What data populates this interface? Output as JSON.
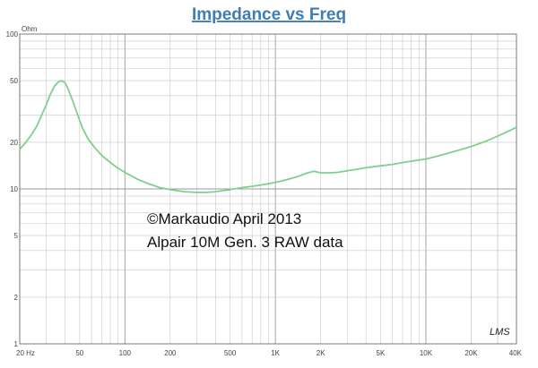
{
  "chart_data": {
    "type": "line",
    "title": "Impedance vs Freq",
    "ylabel": "Ohm",
    "xlabel": "",
    "x_scale": "log",
    "y_scale": "log",
    "xlim": [
      20,
      40000
    ],
    "ylim": [
      1,
      100
    ],
    "grid": true,
    "x_ticks": [
      {
        "value": 20,
        "label": "20 Hz"
      },
      {
        "value": 50,
        "label": "50"
      },
      {
        "value": 100,
        "label": "100"
      },
      {
        "value": 200,
        "label": "200"
      },
      {
        "value": 500,
        "label": "500"
      },
      {
        "value": 1000,
        "label": "1K"
      },
      {
        "value": 2000,
        "label": "2K"
      },
      {
        "value": 5000,
        "label": "5K"
      },
      {
        "value": 10000,
        "label": "10K"
      },
      {
        "value": 20000,
        "label": "20K"
      },
      {
        "value": 40000,
        "label": "40K"
      }
    ],
    "y_ticks": [
      {
        "value": 1,
        "label": "1"
      },
      {
        "value": 2,
        "label": "2"
      },
      {
        "value": 5,
        "label": "5"
      },
      {
        "value": 10,
        "label": "10"
      },
      {
        "value": 20,
        "label": "20"
      },
      {
        "value": 50,
        "label": "50"
      },
      {
        "value": 100,
        "label": "100"
      }
    ],
    "series": [
      {
        "color": "#7fd08c",
        "points": [
          [
            20,
            18
          ],
          [
            22,
            20
          ],
          [
            24,
            22.5
          ],
          [
            26,
            25.5
          ],
          [
            28,
            30
          ],
          [
            30,
            35
          ],
          [
            32,
            41
          ],
          [
            34,
            46
          ],
          [
            36,
            49
          ],
          [
            38,
            50
          ],
          [
            40,
            48.5
          ],
          [
            42,
            44
          ],
          [
            45,
            37
          ],
          [
            48,
            31
          ],
          [
            52,
            25
          ],
          [
            57,
            21
          ],
          [
            63,
            18.5
          ],
          [
            70,
            16.5
          ],
          [
            80,
            14.8
          ],
          [
            90,
            13.6
          ],
          [
            100,
            12.8
          ],
          [
            120,
            11.6
          ],
          [
            140,
            10.9
          ],
          [
            170,
            10.2
          ],
          [
            200,
            9.9
          ],
          [
            250,
            9.6
          ],
          [
            300,
            9.5
          ],
          [
            350,
            9.5
          ],
          [
            400,
            9.6
          ],
          [
            500,
            9.9
          ],
          [
            600,
            10.2
          ],
          [
            700,
            10.4
          ],
          [
            800,
            10.6
          ],
          [
            1000,
            11.0
          ],
          [
            1200,
            11.5
          ],
          [
            1400,
            12.0
          ],
          [
            1600,
            12.6
          ],
          [
            1800,
            13.0
          ],
          [
            2000,
            12.7
          ],
          [
            2300,
            12.7
          ],
          [
            2600,
            12.8
          ],
          [
            3000,
            13.1
          ],
          [
            3500,
            13.4
          ],
          [
            4000,
            13.7
          ],
          [
            5000,
            14.1
          ],
          [
            6000,
            14.4
          ],
          [
            7000,
            14.8
          ],
          [
            8000,
            15.1
          ],
          [
            10000,
            15.6
          ],
          [
            12000,
            16.3
          ],
          [
            15000,
            17.3
          ],
          [
            20000,
            18.8
          ],
          [
            25000,
            20.3
          ],
          [
            30000,
            21.9
          ],
          [
            35000,
            23.5
          ],
          [
            40000,
            25.0
          ]
        ]
      }
    ],
    "annotations": [
      "©Markaudio April 2013",
      "Alpair 10M Gen. 3 RAW data"
    ],
    "watermark": "LMS"
  }
}
